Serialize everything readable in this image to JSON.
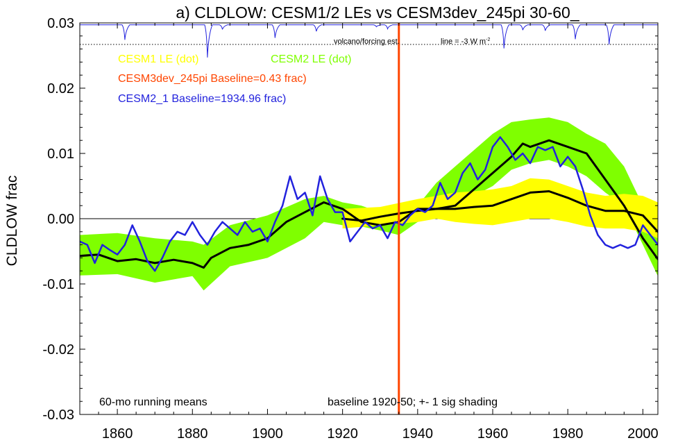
{
  "chart_data": {
    "type": "line",
    "title": "a) CLDLOW: CESM1/2 LEs vs CESM3dev_245pi 30-60_",
    "xlabel": "",
    "ylabel": "CLDLOW frac",
    "xlim": [
      1850,
      2004
    ],
    "ylim": [
      -0.03,
      0.03
    ],
    "x_ticks": [
      1860,
      1880,
      1900,
      1920,
      1940,
      1960,
      1980,
      2000
    ],
    "y_ticks": [
      -0.03,
      -0.02,
      -0.01,
      0.0,
      0.01,
      0.02,
      0.03
    ],
    "y_tick_labels": [
      "-0.03",
      "-0.02",
      "-0.01",
      "0.00",
      "0.01",
      "0.02",
      "0.03"
    ],
    "zero_line": 0.0,
    "legend": {
      "cesm1_le": "CESM1 LE (dot)",
      "cesm2_le": "CESM2 LE (dot)",
      "cesm3dev": "CESM3dev_245pi Baseline=0.43 frac)",
      "cesm2_1": "CESM2_1 Baseline=1934.96 frac)"
    },
    "annotations": {
      "volcano": "volcano/forcing est.",
      "line_label": "line = -3 W m",
      "line_sup": "-2",
      "running": "60-mo running means",
      "baseline": "baseline 1920-50; +- 1 sig shading"
    },
    "vertical_line_year": 1935,
    "volcano_reference": 0.0267,
    "volcano_events": [
      {
        "year": 1862,
        "depth": 0.0023
      },
      {
        "year": 1884,
        "depth": 0.005
      },
      {
        "year": 1888,
        "depth": 0.0007
      },
      {
        "year": 1902,
        "depth": 0.002
      },
      {
        "year": 1913,
        "depth": 0.001
      },
      {
        "year": 1929,
        "depth": 0.0003
      },
      {
        "year": 1932,
        "depth": 0.0006
      },
      {
        "year": 1963,
        "depth": 0.0036
      },
      {
        "year": 1968,
        "depth": 0.0008
      },
      {
        "year": 1974,
        "depth": 0.0009
      },
      {
        "year": 1982,
        "depth": 0.0022
      },
      {
        "year": 1991,
        "depth": 0.003
      }
    ],
    "series": [
      {
        "name": "CESM2 LE spread",
        "type": "band",
        "color": "#7fff00",
        "x": [
          1850,
          1860,
          1870,
          1880,
          1883,
          1890,
          1900,
          1910,
          1915,
          1920,
          1925,
          1930,
          1935,
          1940,
          1945,
          1950,
          1955,
          1960,
          1965,
          1970,
          1975,
          1980,
          1985,
          1990,
          1995,
          2000,
          2004
        ],
        "lower": [
          -0.0087,
          -0.0085,
          -0.0098,
          -0.0088,
          -0.011,
          -0.0073,
          -0.006,
          -0.003,
          -0.0005,
          -0.001,
          -0.0012,
          -0.0018,
          -0.0025,
          -0.0005,
          0.0005,
          0.002,
          0.0035,
          0.005,
          0.0075,
          0.0085,
          0.009,
          0.008,
          0.0065,
          0.004,
          0.002,
          -0.004,
          -0.0088
        ],
        "upper": [
          -0.0025,
          -0.0022,
          -0.003,
          -0.0035,
          -0.004,
          -0.001,
          0.0005,
          0.003,
          0.0035,
          0.0025,
          0.002,
          0.001,
          0.0005,
          0.002,
          0.0055,
          0.008,
          0.0105,
          0.013,
          0.0148,
          0.0152,
          0.0155,
          0.0148,
          0.013,
          0.0115,
          0.008,
          0.002,
          -0.0025
        ]
      },
      {
        "name": "CESM1 LE spread",
        "type": "band",
        "color": "#ffff00",
        "x": [
          1920,
          1930,
          1940,
          1945,
          1950,
          1955,
          1960,
          1965,
          1970,
          1975,
          1980,
          1985,
          1990,
          1995,
          2000,
          2004
        ],
        "lower": [
          -0.0015,
          -0.001,
          -0.0005,
          0.0,
          -0.0005,
          -0.0008,
          -0.001,
          -0.0005,
          0.0,
          0.0,
          -0.0005,
          -0.0012,
          -0.0015,
          -0.0015,
          -0.002,
          -0.003
        ],
        "upper": [
          0.0015,
          0.0018,
          0.003,
          0.0035,
          0.004,
          0.0042,
          0.0045,
          0.005,
          0.0062,
          0.006,
          0.005,
          0.004,
          0.0035,
          0.0038,
          0.0035,
          0.0025
        ]
      },
      {
        "name": "CESM2 LE mean",
        "type": "line",
        "color": "#000000",
        "x": [
          1850,
          1855,
          1860,
          1865,
          1870,
          1875,
          1880,
          1883,
          1885,
          1890,
          1895,
          1900,
          1905,
          1910,
          1915,
          1920,
          1925,
          1930,
          1935,
          1940,
          1945,
          1950,
          1955,
          1960,
          1965,
          1968,
          1970,
          1975,
          1980,
          1985,
          1990,
          1995,
          2000,
          2004
        ],
        "values": [
          -0.0057,
          -0.0055,
          -0.0065,
          -0.0062,
          -0.0068,
          -0.0063,
          -0.0068,
          -0.0075,
          -0.006,
          -0.0045,
          -0.004,
          -0.003,
          -0.0005,
          0.001,
          0.0025,
          0.0015,
          -0.0005,
          -0.001,
          -0.0005,
          0.0015,
          0.0015,
          0.002,
          0.0045,
          0.007,
          0.0095,
          0.0115,
          0.011,
          0.012,
          0.011,
          0.01,
          0.006,
          0.002,
          -0.003,
          -0.0062
        ]
      },
      {
        "name": "CESM1 LE mean",
        "type": "line",
        "color": "#000000",
        "x": [
          1920,
          1925,
          1930,
          1935,
          1940,
          1945,
          1950,
          1955,
          1960,
          1965,
          1970,
          1975,
          1980,
          1985,
          1990,
          1995,
          2000,
          2004
        ],
        "values": [
          0.0,
          -0.0003,
          0.0003,
          0.0008,
          0.0012,
          0.0015,
          0.0015,
          0.0018,
          0.002,
          0.003,
          0.004,
          0.0042,
          0.0032,
          0.002,
          0.0012,
          0.0012,
          0.0005,
          -0.002
        ]
      },
      {
        "name": "CESM2_1",
        "type": "line",
        "color": "#2222dd",
        "x": [
          1850,
          1852,
          1854,
          1856,
          1858,
          1860,
          1862,
          1864,
          1866,
          1868,
          1870,
          1872,
          1874,
          1876,
          1878,
          1880,
          1882,
          1884,
          1886,
          1888,
          1890,
          1892,
          1894,
          1896,
          1898,
          1900,
          1902,
          1904,
          1906,
          1908,
          1910,
          1912,
          1914,
          1916,
          1918,
          1920,
          1922,
          1924,
          1926,
          1928,
          1930,
          1932,
          1934,
          1936,
          1938,
          1940,
          1942,
          1944,
          1946,
          1948,
          1950,
          1952,
          1954,
          1956,
          1958,
          1960,
          1962,
          1964,
          1966,
          1968,
          1970,
          1972,
          1974,
          1976,
          1978,
          1980,
          1982,
          1984,
          1986,
          1988,
          1990,
          1992,
          1994,
          1996,
          1998,
          2000,
          2002,
          2004
        ],
        "values": [
          -0.0035,
          -0.004,
          -0.0068,
          -0.004,
          -0.0048,
          -0.0055,
          -0.004,
          -0.001,
          -0.0035,
          -0.0065,
          -0.008,
          -0.006,
          -0.0035,
          -0.002,
          -0.0025,
          -0.0005,
          -0.0025,
          -0.004,
          -0.002,
          -0.0005,
          -0.0015,
          -0.0025,
          -0.0005,
          -0.002,
          -0.0015,
          -0.0035,
          -0.0005,
          0.002,
          0.0065,
          0.003,
          0.004,
          0.0005,
          0.0065,
          0.003,
          0.001,
          0.001,
          -0.0035,
          -0.002,
          -0.0005,
          -0.0015,
          -0.001,
          -0.003,
          -0.0005,
          -0.001,
          0.0005,
          0.0015,
          0.001,
          0.002,
          0.0055,
          0.003,
          0.004,
          0.007,
          0.0085,
          0.006,
          0.0075,
          0.011,
          0.0125,
          0.011,
          0.009,
          0.01,
          0.0085,
          0.011,
          0.0105,
          0.011,
          0.008,
          0.0095,
          0.008,
          0.0045,
          0.0005,
          -0.0025,
          -0.004,
          -0.0045,
          -0.004,
          -0.0045,
          -0.004,
          -0.001,
          -0.0025,
          -0.004
        ]
      },
      {
        "name": "CESM3dev_245pi",
        "type": "vline",
        "color": "#ff4500"
      }
    ]
  }
}
